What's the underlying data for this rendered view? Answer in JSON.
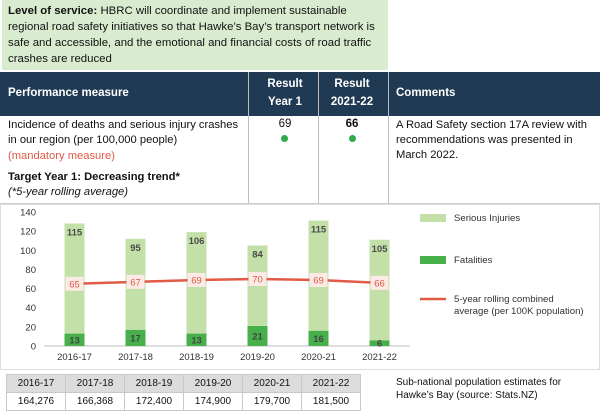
{
  "level_of_service": {
    "label": "Level of service:",
    "text": "HBRC will coordinate and implement sustainable regional road safety initiatives so that Hawke’s Bay’s transport network is safe and accessible, and the emotional and financial costs of road traffic crashes are reduced"
  },
  "header": {
    "performance_measure": "Performance measure",
    "result1_line1": "Result",
    "result1_line2": "Year 1",
    "result2_line1": "Result",
    "result2_line2": "2021-22",
    "comments": "Comments"
  },
  "measure": {
    "text": "Incidence of deaths and serious injury crashes in our region (per 100,000 people)",
    "mandatory": "(mandatory measure)",
    "target": "Target Year 1: Decreasing trend*",
    "target_note": "(*5-year rolling average)",
    "result_year1": "69",
    "result_2021_22": "66",
    "status_color": "#2daa4a",
    "comment": "A Road Safety section 17A review with recommendations was presented in March 2022."
  },
  "chart_data": {
    "type": "bar",
    "stacked": true,
    "categories": [
      "2016-17",
      "2017-18",
      "2018-19",
      "2019-20",
      "2020-21",
      "2021-22"
    ],
    "series": [
      {
        "name": "Fatalities",
        "values": [
          13,
          17,
          13,
          21,
          16,
          6
        ],
        "color": "#47b04a"
      },
      {
        "name": "Serious Injuries",
        "values": [
          115,
          95,
          106,
          84,
          115,
          105
        ],
        "color": "#c4e0a9"
      }
    ],
    "line": {
      "name": "5-year rolling combined average (per 100K population)",
      "values": [
        65,
        67,
        69,
        70,
        69,
        66
      ],
      "color": "#e05a45"
    },
    "ylim": [
      0,
      140
    ],
    "yticks": [
      0,
      20,
      40,
      60,
      80,
      100,
      120,
      140
    ],
    "legend_position": "right"
  },
  "population": {
    "years": [
      "2016-17",
      "2017-18",
      "2018-19",
      "2019-20",
      "2020-21",
      "2021-22"
    ],
    "values": [
      "164,276",
      "166,368",
      "172,400",
      "174,900",
      "179,700",
      "181,500"
    ],
    "note": "Sub-national population estimates for Hawke’s Bay (source: Stats.NZ)"
  }
}
